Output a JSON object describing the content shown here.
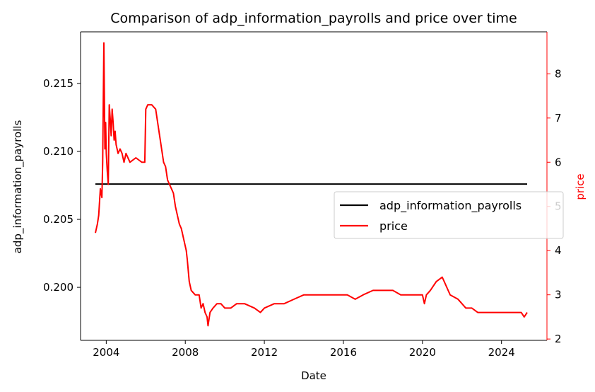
{
  "chart_data": {
    "type": "line",
    "title": "Comparison of adp_information_payrolls and price over time",
    "xlabel": "Date",
    "ylabel_left": "adp_information_payrolls",
    "ylabel_right": "price",
    "xlim": [
      2002.7,
      2026.3
    ],
    "ylim_left": [
      0.1961,
      0.2188
    ],
    "ylim_right": [
      1.97,
      8.95
    ],
    "x_ticks": [
      2004,
      2008,
      2012,
      2016,
      2020,
      2024
    ],
    "y_left_ticks": [
      0.2,
      0.205,
      0.21,
      0.215
    ],
    "y_left_tick_labels": [
      "0.200",
      "0.205",
      "0.210",
      "0.215"
    ],
    "y_right_ticks": [
      2,
      3,
      4,
      5,
      6,
      7,
      8
    ],
    "legend_position": "center-right",
    "series": [
      {
        "name": "adp_information_payrolls",
        "axis": "left",
        "color": "#000000",
        "x": [
          2003.45,
          2025.3
        ],
        "values": [
          0.2076,
          0.2076
        ]
      },
      {
        "name": "price",
        "axis": "right",
        "color": "#ff0000",
        "x": [
          2003.45,
          2003.55,
          2003.62,
          2003.7,
          2003.78,
          2003.82,
          2003.88,
          2003.93,
          2003.97,
          2004.0,
          2004.05,
          2004.1,
          2004.15,
          2004.2,
          2004.25,
          2004.3,
          2004.35,
          2004.4,
          2004.45,
          2004.5,
          2004.6,
          2004.7,
          2004.8,
          2004.9,
          2005.0,
          2005.2,
          2005.5,
          2005.8,
          2005.95,
          2006.0,
          2006.1,
          2006.3,
          2006.5,
          2006.6,
          2006.7,
          2006.8,
          2006.9,
          2007.0,
          2007.1,
          2007.2,
          2007.3,
          2007.4,
          2007.5,
          2007.6,
          2007.7,
          2007.8,
          2007.9,
          2008.0,
          2008.05,
          2008.1,
          2008.2,
          2008.3,
          2008.5,
          2008.7,
          2008.8,
          2008.9,
          2009.0,
          2009.1,
          2009.15,
          2009.25,
          2009.4,
          2009.6,
          2009.8,
          2010.0,
          2010.3,
          2010.6,
          2011.0,
          2011.5,
          2011.8,
          2012.0,
          2012.5,
          2013.0,
          2013.5,
          2014.0,
          2014.5,
          2015.0,
          2015.5,
          2015.9,
          2016.2,
          2016.6,
          2017.0,
          2017.5,
          2018.0,
          2018.5,
          2018.9,
          2019.2,
          2019.6,
          2020.0,
          2020.1,
          2020.2,
          2020.4,
          2020.7,
          2021.0,
          2021.1,
          2021.4,
          2021.8,
          2022.2,
          2022.5,
          2022.8,
          2023.2,
          2023.6,
          2023.9,
          2024.0,
          2024.3,
          2024.7,
          2025.0,
          2025.15,
          2025.3
        ],
        "values": [
          4.4,
          4.6,
          4.8,
          5.4,
          5.2,
          6.0,
          8.7,
          6.3,
          6.9,
          6.2,
          5.8,
          5.5,
          7.3,
          7.0,
          6.6,
          7.2,
          6.9,
          6.5,
          6.7,
          6.4,
          6.2,
          6.3,
          6.2,
          6.0,
          6.2,
          6.0,
          6.1,
          6.0,
          6.0,
          7.2,
          7.3,
          7.3,
          7.2,
          6.9,
          6.6,
          6.3,
          6.0,
          5.9,
          5.6,
          5.5,
          5.4,
          5.3,
          5.0,
          4.8,
          4.6,
          4.5,
          4.3,
          4.1,
          4.0,
          3.8,
          3.3,
          3.1,
          3.0,
          3.0,
          2.7,
          2.8,
          2.6,
          2.5,
          2.3,
          2.6,
          2.7,
          2.8,
          2.8,
          2.7,
          2.7,
          2.8,
          2.8,
          2.7,
          2.6,
          2.7,
          2.8,
          2.8,
          2.9,
          3.0,
          3.0,
          3.0,
          3.0,
          3.0,
          3.0,
          2.9,
          3.0,
          3.1,
          3.1,
          3.1,
          3.0,
          3.0,
          3.0,
          3.0,
          2.8,
          3.0,
          3.1,
          3.3,
          3.4,
          3.3,
          3.0,
          2.9,
          2.7,
          2.7,
          2.6,
          2.6,
          2.6,
          2.6,
          2.6,
          2.6,
          2.6,
          2.6,
          2.5,
          2.6
        ]
      }
    ]
  }
}
